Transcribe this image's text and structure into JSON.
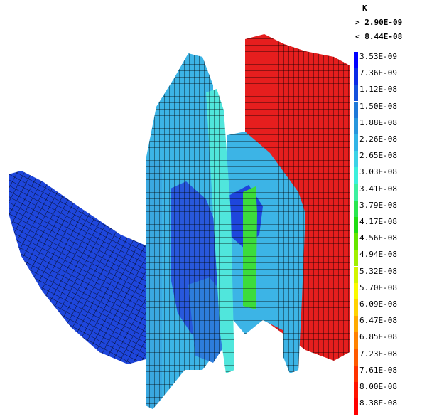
{
  "legend": {
    "variable": "K",
    "filter_min": "> 2.90E-09",
    "filter_max": "< 8.44E-08",
    "items": [
      {
        "label": "3.53E-09",
        "color": "#0000ff"
      },
      {
        "label": "7.36E-09",
        "color": "#0a2ae6"
      },
      {
        "label": "1.12E-08",
        "color": "#1450dc"
      },
      {
        "label": "1.50E-08",
        "color": "#1e78d8"
      },
      {
        "label": "1.88E-08",
        "color": "#2896dc"
      },
      {
        "label": "2.26E-08",
        "color": "#32b4e6"
      },
      {
        "label": "2.65E-08",
        "color": "#3cd2e6"
      },
      {
        "label": "3.03E-08",
        "color": "#3cf0dc"
      },
      {
        "label": "3.41E-08",
        "color": "#3cf0a0"
      },
      {
        "label": "3.79E-08",
        "color": "#28e650"
      },
      {
        "label": "4.17E-08",
        "color": "#1edc14"
      },
      {
        "label": "4.56E-08",
        "color": "#64e600"
      },
      {
        "label": "4.94E-08",
        "color": "#a0f000"
      },
      {
        "label": "5.32E-08",
        "color": "#d2f500"
      },
      {
        "label": "5.70E-08",
        "color": "#fafa00"
      },
      {
        "label": "6.09E-08",
        "color": "#ffd200"
      },
      {
        "label": "6.47E-08",
        "color": "#ffaa00"
      },
      {
        "label": "6.85E-08",
        "color": "#ff8200"
      },
      {
        "label": "7.23E-08",
        "color": "#ff5a00"
      },
      {
        "label": "7.61E-08",
        "color": "#ff3200"
      },
      {
        "label": "8.00E-08",
        "color": "#ff1400"
      },
      {
        "label": "8.38E-08",
        "color": "#ff0000"
      }
    ]
  },
  "model_colors": {
    "deep_blue": "#1e46dc",
    "mid_blue": "#2d7ddc",
    "light_blue": "#3cb4e6",
    "cyan": "#50e6dc",
    "green": "#3cdc3c",
    "red": "#e61e1e",
    "edge": "#000000"
  }
}
